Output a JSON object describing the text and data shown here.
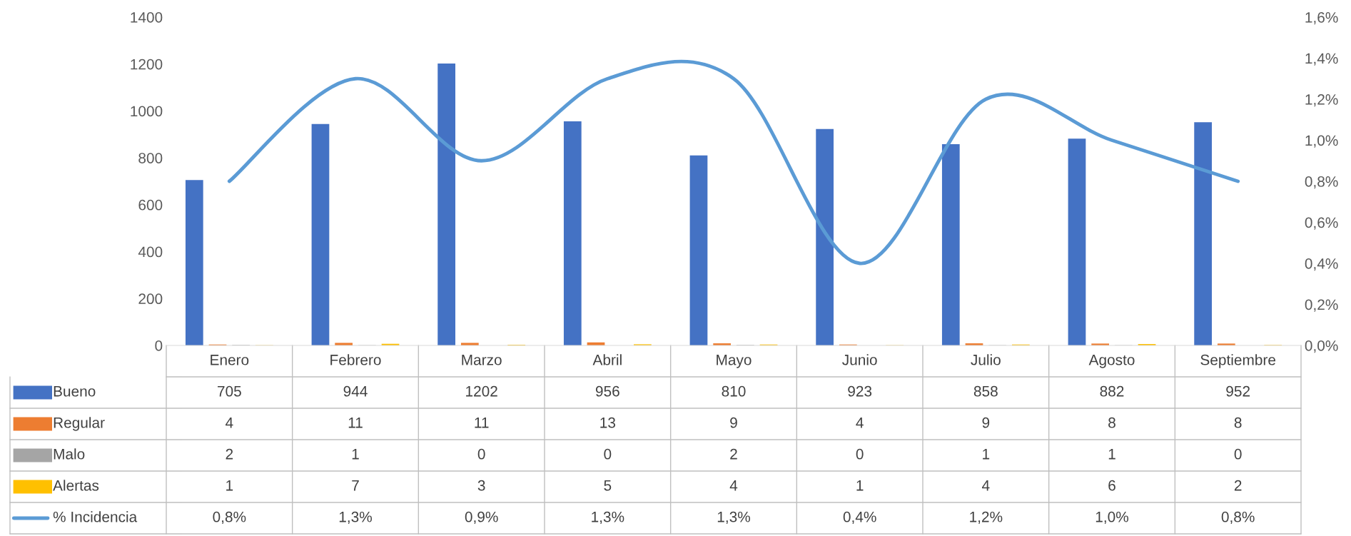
{
  "chart_data": {
    "type": "bar",
    "categories": [
      "Enero",
      "Febrero",
      "Marzo",
      "Abril",
      "Mayo",
      "Junio",
      "Julio",
      "Agosto",
      "Septiembre"
    ],
    "series": [
      {
        "name": "Bueno",
        "color": "#4472c4",
        "values": [
          705,
          944,
          1202,
          956,
          810,
          923,
          858,
          882,
          952
        ]
      },
      {
        "name": "Regular",
        "color": "#ed7d31",
        "values": [
          4,
          11,
          11,
          13,
          9,
          4,
          9,
          8,
          8
        ]
      },
      {
        "name": "Malo",
        "color": "#a5a5a5",
        "values": [
          2,
          1,
          0,
          0,
          2,
          0,
          1,
          1,
          0
        ]
      },
      {
        "name": "Alertas",
        "color": "#ffc000",
        "values": [
          1,
          7,
          3,
          5,
          4,
          1,
          4,
          6,
          2
        ]
      },
      {
        "name": "% Incidencia",
        "type": "line",
        "axis": "y2",
        "color": "#5b9bd5",
        "values": [
          0.8,
          1.3,
          0.9,
          1.3,
          1.3,
          0.4,
          1.2,
          1.0,
          0.8
        ],
        "value_labels": [
          "0,8%",
          "1,3%",
          "0,9%",
          "1,3%",
          "1,3%",
          "0,4%",
          "1,2%",
          "1,0%",
          "0,8%"
        ]
      }
    ],
    "ylim": [
      0,
      1400
    ],
    "yticks": [
      0,
      200,
      400,
      600,
      800,
      1000,
      1200,
      1400
    ],
    "y2lim": [
      0,
      1.6
    ],
    "y2ticks": [
      {
        "value": 0,
        "label": "0,0%"
      },
      {
        "value": 0.2,
        "label": "0,2%"
      },
      {
        "value": 0.4,
        "label": "0,4%"
      },
      {
        "value": 0.6,
        "label": "0,6%"
      },
      {
        "value": 0.8,
        "label": "0,8%"
      },
      {
        "value": 1.0,
        "label": "1,0%"
      },
      {
        "value": 1.2,
        "label": "1,2%"
      },
      {
        "value": 1.4,
        "label": "1,4%"
      },
      {
        "value": 1.6,
        "label": "1,6%"
      }
    ],
    "grid": false,
    "data_labels": true,
    "legend": "bottom"
  }
}
